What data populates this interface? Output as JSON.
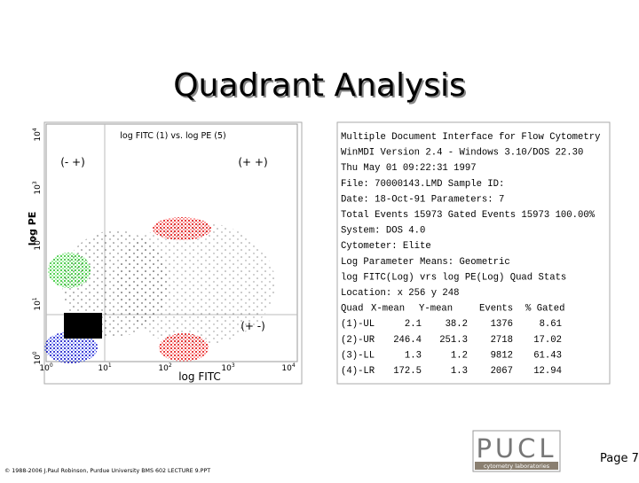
{
  "title": "Quadrant Analysis",
  "plot": {
    "title": "log FITC (1) vs. log PE (5)",
    "quadrant_labels": [
      "(- +)",
      "(+ +)",
      "(+ -)"
    ],
    "x_axis_label": "log FITC",
    "y_axis_label": "log PE",
    "x_ticks": [
      {
        "base": "10",
        "exp": "0"
      },
      {
        "base": "10",
        "exp": "1"
      },
      {
        "base": "10",
        "exp": "2"
      },
      {
        "base": "10",
        "exp": "3"
      },
      {
        "base": "10",
        "exp": "4"
      }
    ],
    "y_ticks": [
      {
        "base": "10",
        "exp": "0"
      },
      {
        "base": "10",
        "exp": "1"
      },
      {
        "base": "10",
        "exp": "2"
      },
      {
        "base": "10",
        "exp": "3"
      },
      {
        "base": "10",
        "exp": "4"
      }
    ]
  },
  "report": {
    "lines": [
      "Multiple Document Interface for Flow Cytometry",
      "WinMDI Version 2.4 - Windows 3.10/DOS 22.30",
      "Thu May 01 09:22:31 1997",
      "File: 70000143.LMD Sample ID:",
      "Date: 18-Oct-91 Parameters: 7",
      "Total Events 15973 Gated Events 15973 100.00%",
      "System: DOS 4.0",
      "Cytometer: Elite",
      "Log Parameter Means: Geometric",
      "log FITC(Log) vrs log PE(Log) Quad Stats",
      "Location: x 256 y 248"
    ],
    "table": {
      "header": [
        "Quad",
        "X-mean",
        "Y-mean",
        "Events",
        "% Gated"
      ],
      "rows": [
        [
          "(1)-UL",
          2.1,
          38.2,
          1376,
          8.61
        ],
        [
          "(2)-UR",
          246.4,
          251.3,
          2718,
          17.02
        ],
        [
          "(3)-LL",
          1.3,
          1.2,
          9812,
          61.43
        ],
        [
          "(4)-LR",
          172.5,
          1.3,
          2067,
          12.94
        ]
      ]
    }
  },
  "logo": {
    "name": "PUCL",
    "tagline": "cytometry laboratories"
  },
  "footer": {
    "copyright": "© 1988-2006 J.Paul Robinson, Purdue University BMS 602 LECTURE 9.PPT",
    "page": "Page 7"
  }
}
